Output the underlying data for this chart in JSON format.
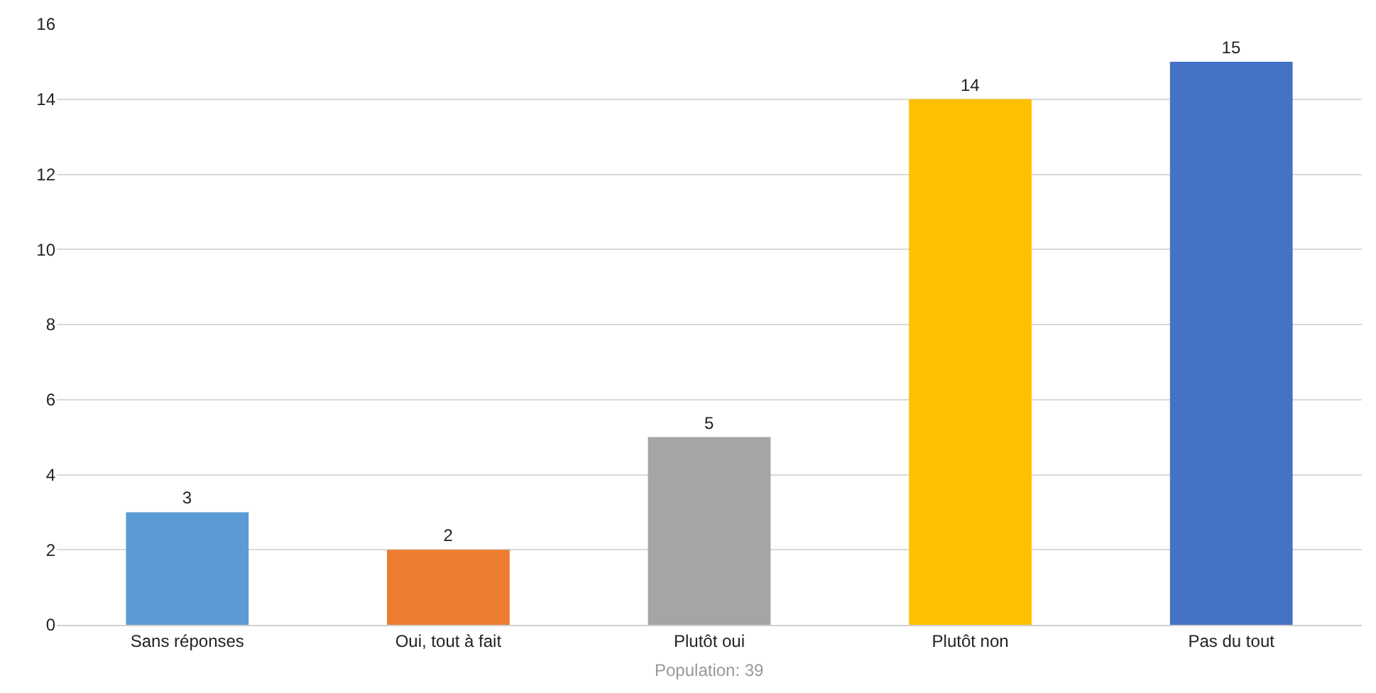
{
  "chart_data": {
    "type": "bar",
    "categories": [
      "Sans réponses",
      "Oui, tout à fait",
      "Plutôt oui",
      "Plutôt non",
      "Pas du tout"
    ],
    "values": [
      3,
      2,
      5,
      14,
      15
    ],
    "colors": [
      "#5b9bd5",
      "#ed7d31",
      "#a5a5a5",
      "#ffc000",
      "#4472c4"
    ],
    "ylim": [
      0,
      16
    ],
    "yticks": [
      0,
      2,
      4,
      6,
      8,
      10,
      12,
      14,
      16
    ],
    "grid": "y",
    "data_labels": true,
    "annotations": [
      "Population: 39"
    ]
  }
}
